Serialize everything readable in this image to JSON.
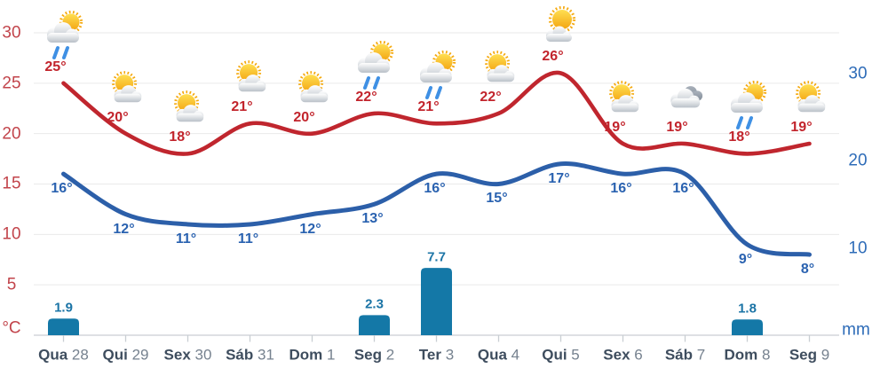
{
  "chart_data": {
    "type": "line+bar",
    "title": "",
    "categories": [
      {
        "day": "Qua",
        "date": "28"
      },
      {
        "day": "Qui",
        "date": "29"
      },
      {
        "day": "Sex",
        "date": "30"
      },
      {
        "day": "Sáb",
        "date": "31"
      },
      {
        "day": "Dom",
        "date": "1"
      },
      {
        "day": "Seg",
        "date": "2"
      },
      {
        "day": "Ter",
        "date": "3"
      },
      {
        "day": "Qua",
        "date": "4"
      },
      {
        "day": "Qui",
        "date": "5"
      },
      {
        "day": "Sex",
        "date": "6"
      },
      {
        "day": "Sáb",
        "date": "7"
      },
      {
        "day": "Dom",
        "date": "8"
      },
      {
        "day": "Seg",
        "date": "9"
      }
    ],
    "series": [
      {
        "name": "max-temp",
        "type": "line",
        "unit": "°C",
        "value_suffix": "°",
        "color": "#c0262e",
        "label_color": "#c2242c",
        "values": [
          25,
          20,
          18,
          21,
          20,
          22,
          21,
          22,
          26,
          19,
          19,
          18,
          19
        ]
      },
      {
        "name": "min-temp",
        "type": "line",
        "unit": "°C",
        "value_suffix": "°",
        "color": "#2c5fa9",
        "label_color": "#2a62b0",
        "values": [
          16,
          12,
          11,
          11,
          12,
          13,
          16,
          15,
          17,
          16,
          16,
          9,
          8
        ]
      },
      {
        "name": "precipitation",
        "type": "bar",
        "unit": "mm",
        "value_suffix": "",
        "color": "#1478a7",
        "label_color": "#1b74a6",
        "values": [
          1.9,
          null,
          null,
          null,
          null,
          2.3,
          7.7,
          null,
          null,
          null,
          null,
          1.8,
          null
        ]
      }
    ],
    "icons": [
      "sun-rain",
      "sun-cloud",
      "sun-cloud",
      "sun-cloud",
      "sun-cloud",
      "sun-rain",
      "sun-rain",
      "sun-cloud",
      "mostly-sunny",
      "sun-cloud",
      "cloudy",
      "sun-rain",
      "sun-cloud"
    ],
    "left_axis": {
      "unit": "°C",
      "ticks": [
        30,
        25,
        20,
        15,
        10,
        5
      ],
      "range": [
        0,
        33
      ]
    },
    "right_axis": {
      "unit": "mm",
      "ticks": [
        30,
        20,
        10
      ],
      "range": [
        0,
        38
      ]
    },
    "grid": true,
    "legend": false
  },
  "colors": {
    "grid": "#eaeaea",
    "axis_line": "#c9ced3",
    "left_axis_text": "#c2444b",
    "right_axis_text": "#2e6cb8",
    "day_name": "#3e4d5e",
    "day_number": "#76828f"
  }
}
